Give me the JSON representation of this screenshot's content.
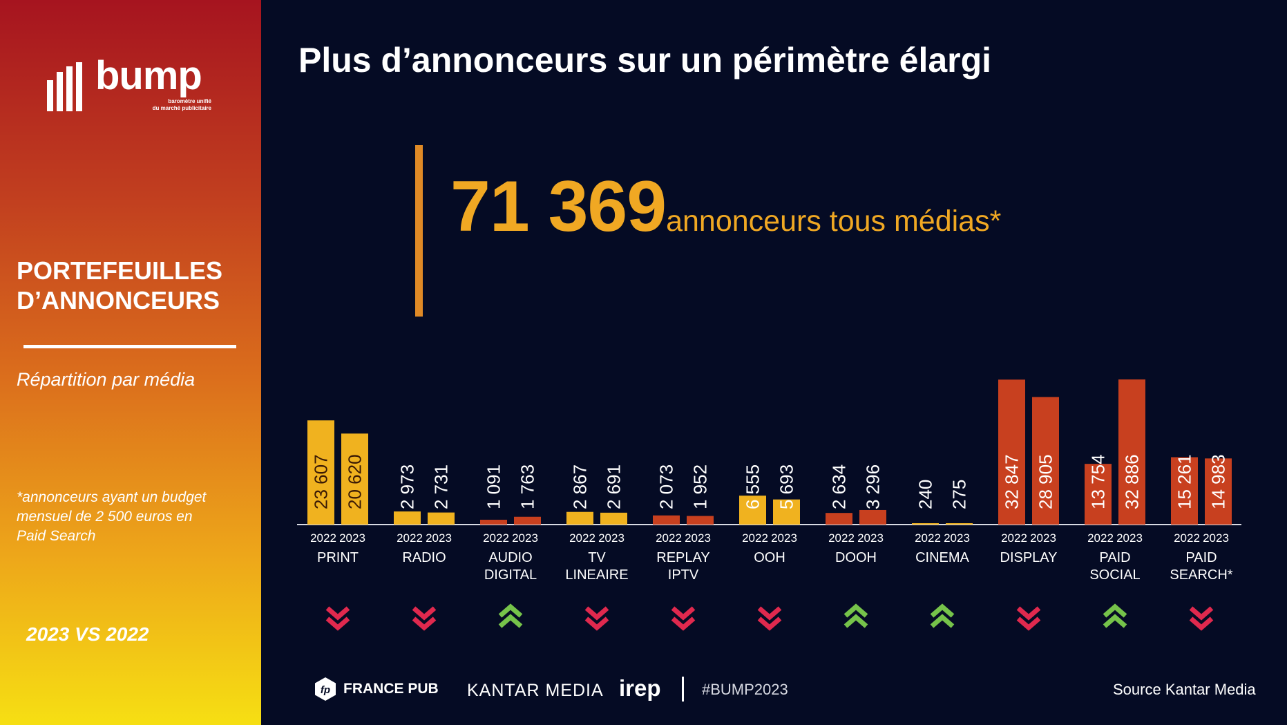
{
  "brand": {
    "name": "bump",
    "tagline_1": "baromètre unifié",
    "tagline_2": "du marché publicitaire"
  },
  "sidebar": {
    "section_title_1": "PORTEFEUILLES",
    "section_title_2": "D’ANNONCEURS",
    "subtitle": "Répartition par média",
    "footnote": "*annonceurs ayant un budget mensuel de 2 500 euros en Paid Search",
    "comparison": "2023 VS 2022"
  },
  "title": "Plus d’annonceurs sur un périmètre élargi",
  "headline": {
    "number": "71 369",
    "label": "annonceurs tous médias*"
  },
  "footer": {
    "france_pub": "FRANCE PUB",
    "france_pub_icon": "fp",
    "kantar": "KANTAR MEDIA",
    "irep": "irep",
    "hashtag": "#BUMP2023",
    "source": "Source Kantar Media"
  },
  "colors": {
    "background": "#050b24",
    "traditional": "#f0b21f",
    "digital": "#c8401f",
    "trend_down": "#e0294e",
    "trend_up": "#76c34a",
    "headline": "#f0a823"
  },
  "chart_data": {
    "type": "bar",
    "x_years": [
      "2022",
      "2023"
    ],
    "categories": [
      {
        "label": [
          "PRINT"
        ],
        "group": "traditional",
        "trend": "down",
        "values": [
          23607,
          20620
        ],
        "value_labels": [
          "23 607",
          "20 620"
        ]
      },
      {
        "label": [
          "RADIO"
        ],
        "group": "traditional",
        "trend": "down",
        "values": [
          2973,
          2731
        ],
        "value_labels": [
          "2 973",
          "2 731"
        ]
      },
      {
        "label": [
          "AUDIO",
          "DIGITAL"
        ],
        "group": "digital",
        "trend": "up",
        "values": [
          1091,
          1763
        ],
        "value_labels": [
          "1 091",
          "1 763"
        ]
      },
      {
        "label": [
          "TV",
          "LINEAIRE"
        ],
        "group": "traditional",
        "trend": "down",
        "values": [
          2867,
          2691
        ],
        "value_labels": [
          "2 867",
          "2 691"
        ]
      },
      {
        "label": [
          "REPLAY",
          "IPTV"
        ],
        "group": "digital",
        "trend": "down",
        "values": [
          2073,
          1952
        ],
        "value_labels": [
          "2 073",
          "1 952"
        ]
      },
      {
        "label": [
          "OOH"
        ],
        "group": "traditional",
        "trend": "down",
        "values": [
          6555,
          5693
        ],
        "value_labels": [
          "6 555",
          "5 693"
        ]
      },
      {
        "label": [
          "DOOH"
        ],
        "group": "digital",
        "trend": "up",
        "values": [
          2634,
          3296
        ],
        "value_labels": [
          "2 634",
          "3 296"
        ]
      },
      {
        "label": [
          "CINEMA"
        ],
        "group": "traditional",
        "trend": "up",
        "values": [
          240,
          275
        ],
        "value_labels": [
          "240",
          "275"
        ]
      },
      {
        "label": [
          "DISPLAY"
        ],
        "group": "digital",
        "trend": "down",
        "values": [
          32847,
          28905
        ],
        "value_labels": [
          "32 847",
          "28 905"
        ]
      },
      {
        "label": [
          "PAID",
          "SOCIAL"
        ],
        "group": "digital",
        "trend": "up",
        "values": [
          13754,
          32886
        ],
        "value_labels": [
          "13 754",
          "32 886"
        ]
      },
      {
        "label": [
          "PAID",
          "SEARCH*"
        ],
        "group": "digital",
        "trend": "down",
        "values": [
          15261,
          14983
        ],
        "value_labels": [
          "15 261",
          "14 983"
        ]
      }
    ]
  }
}
